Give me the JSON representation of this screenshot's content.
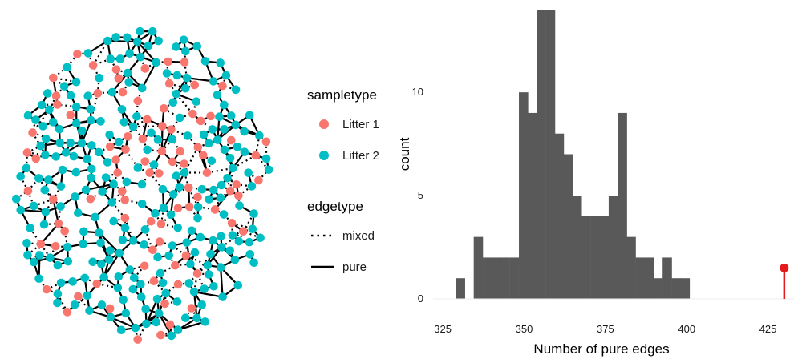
{
  "legend": {
    "sampletype_title": "sampletype",
    "sampletype_items": [
      {
        "label": "Litter 1",
        "color": "#F8766D"
      },
      {
        "label": "Litter 2",
        "color": "#00BFC4"
      }
    ],
    "edgetype_title": "edgetype",
    "edgetype_items": [
      {
        "label": "mixed",
        "style": "dotted"
      },
      {
        "label": "pure",
        "style": "solid"
      }
    ]
  },
  "chart_data": [
    {
      "type": "network",
      "node_color_by": "sampletype",
      "edge_style_by": "edgetype",
      "colors": {
        "Litter 1": "#F8766D",
        "Litter 2": "#00BFC4",
        "edge": "#000000"
      }
    },
    {
      "type": "bar",
      "subtype": "histogram",
      "xlabel": "Number of pure edges",
      "ylabel": "count",
      "xticks": [
        "325",
        "350",
        "375",
        "400",
        "425"
      ],
      "yticks": [
        "0",
        "5",
        "10"
      ],
      "xlim": [
        322,
        433
      ],
      "ylim": [
        0,
        14
      ],
      "bin_width": 2.76,
      "bins": [
        {
          "x0": 329.0,
          "count": 1
        },
        {
          "x0": 334.5,
          "count": 3
        },
        {
          "x0": 337.3,
          "count": 2
        },
        {
          "x0": 340.1,
          "count": 2
        },
        {
          "x0": 342.8,
          "count": 2
        },
        {
          "x0": 345.6,
          "count": 2
        },
        {
          "x0": 348.4,
          "count": 10
        },
        {
          "x0": 351.1,
          "count": 9
        },
        {
          "x0": 353.9,
          "count": 14
        },
        {
          "x0": 356.7,
          "count": 14
        },
        {
          "x0": 359.4,
          "count": 8
        },
        {
          "x0": 362.2,
          "count": 7
        },
        {
          "x0": 364.9,
          "count": 5
        },
        {
          "x0": 367.7,
          "count": 4
        },
        {
          "x0": 370.5,
          "count": 4
        },
        {
          "x0": 373.2,
          "count": 4
        },
        {
          "x0": 376.0,
          "count": 5
        },
        {
          "x0": 378.8,
          "count": 9
        },
        {
          "x0": 381.5,
          "count": 3
        },
        {
          "x0": 384.3,
          "count": 2
        },
        {
          "x0": 387.1,
          "count": 2
        },
        {
          "x0": 389.8,
          "count": 1
        },
        {
          "x0": 392.6,
          "count": 2
        },
        {
          "x0": 395.4,
          "count": 1
        },
        {
          "x0": 398.1,
          "count": 1
        }
      ],
      "bar_color": "#595959",
      "observed": {
        "x": 430,
        "height": 1.5,
        "color": "#E41A1C"
      },
      "grid": false
    }
  ]
}
